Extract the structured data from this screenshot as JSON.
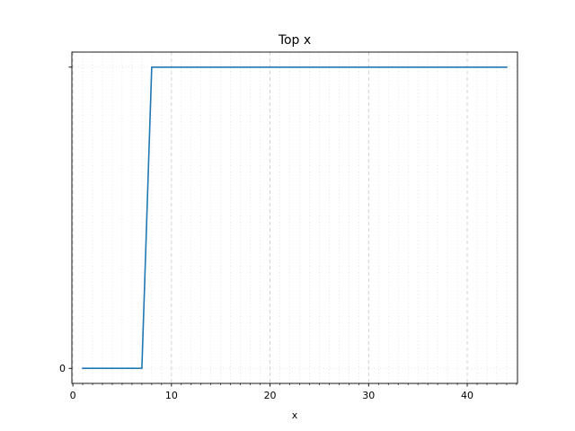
{
  "chart_data": {
    "type": "line",
    "title": "Top x",
    "xlabel": "x",
    "ylabel": "",
    "xlim": [
      -0.1,
      45.1
    ],
    "ylim": [
      -0.05,
      1.05
    ],
    "xticks": [
      0,
      10,
      20,
      30,
      40
    ],
    "xtick_labels": [
      "0",
      "10",
      "20",
      "30",
      "40"
    ],
    "x_minor_step": 1,
    "yticks": [
      0,
      1
    ],
    "ytick_labels": [
      "0",
      ""
    ],
    "grid": true,
    "series": [
      {
        "color": "#1f77b4",
        "x": [
          1,
          7,
          8,
          44
        ],
        "y": [
          0,
          0,
          1,
          1
        ]
      }
    ]
  }
}
